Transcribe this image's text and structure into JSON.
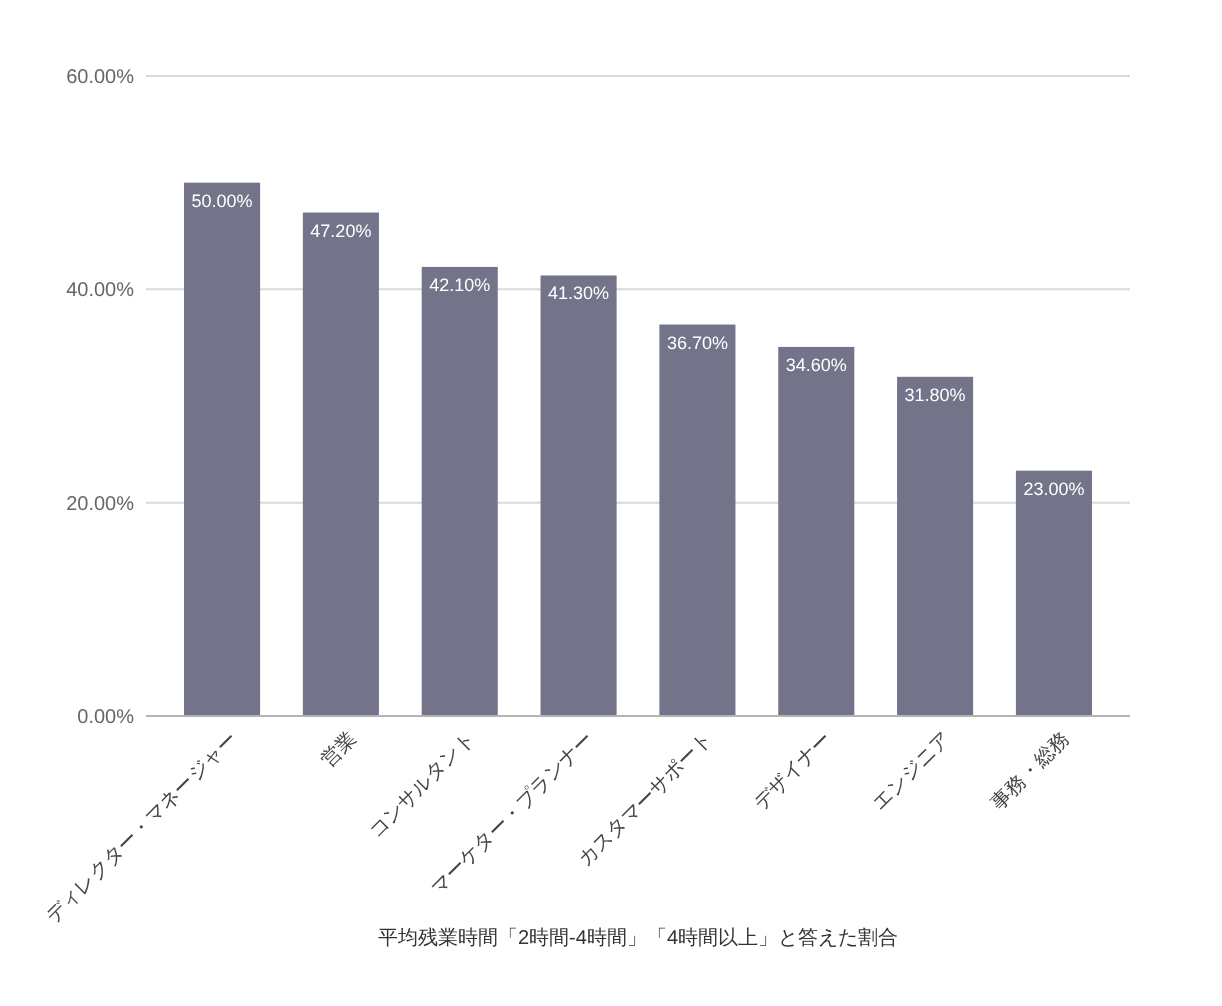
{
  "chart_data": {
    "type": "bar",
    "xlabel": "平均残業時間「2時間-4時間」「4時間以上」と答えた割合",
    "categories": [
      "ディレクター・マネージャー",
      "営業",
      "コンサルタント",
      "マーケター・プランナー",
      "カスタマーサポート",
      "デザイナー",
      "エンジニア",
      "事務・総務"
    ],
    "values": [
      50,
      47.2,
      42.1,
      41.3,
      36.7,
      34.6,
      31.8,
      23
    ],
    "value_labels": [
      "50.00%",
      "47.20%",
      "42.10%",
      "41.30%",
      "36.70%",
      "34.60%",
      "31.80%",
      "23.00%"
    ],
    "color": "#737489",
    "ylim": [
      0,
      60
    ],
    "yticks": [
      {
        "value": 0,
        "label": "0.00%"
      },
      {
        "value": 20,
        "label": "20.00%"
      },
      {
        "value": 40,
        "label": "40.00%"
      },
      {
        "value": 60,
        "label": "60.00%"
      }
    ],
    "grid": "y"
  }
}
